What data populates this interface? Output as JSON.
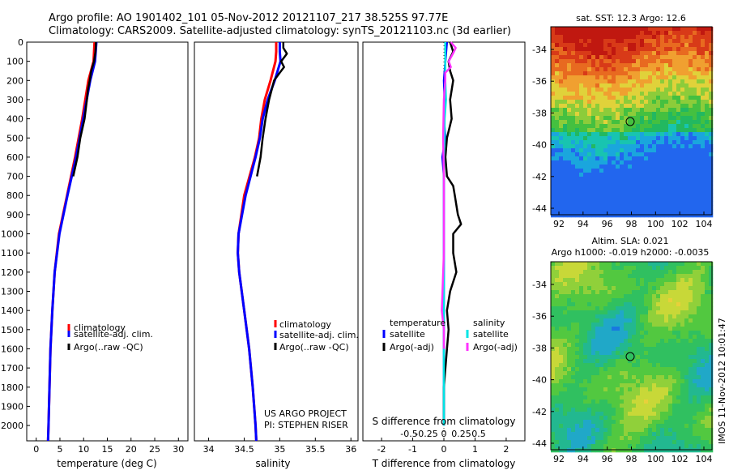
{
  "header": {
    "line1": "Argo profile: AO 1901402_101 05-Nov-2012 20121107_217 38.525S 97.77E",
    "line2": "Climatology: CARS2009. Satellite-adjusted climatology: synTS_20121103.nc (3d earlier)"
  },
  "colors": {
    "clim": "#ff0000",
    "sat": "#0000ff",
    "argo": "#000000",
    "sal_sat": "#00e5e5",
    "sal_argo": "#ff33ff"
  },
  "chart_data": [
    {
      "id": "temp",
      "type": "line",
      "xlabel": "temperature (deg C)",
      "ylabel": "",
      "xlim": [
        -2,
        32
      ],
      "ylim": [
        0,
        2080
      ],
      "xticks": [
        0,
        5,
        10,
        15,
        20,
        25,
        30
      ],
      "xticklabels": [
        "0",
        "5",
        "10",
        "15",
        "20",
        "25",
        "30"
      ],
      "yticks": [
        0,
        100,
        200,
        300,
        400,
        500,
        600,
        700,
        800,
        900,
        1000,
        1100,
        1200,
        1300,
        1400,
        1500,
        1600,
        1700,
        1800,
        1900,
        2000
      ],
      "yticklabels": [
        "0",
        "100",
        "200",
        "300",
        "400",
        "500",
        "600",
        "700",
        "800",
        "900",
        "1000",
        "1100",
        "1200",
        "1300",
        "1400",
        "1500",
        "1600",
        "1700",
        "1800",
        "1900",
        "2000"
      ],
      "legend": [
        "climatology",
        "satellite-adj. clim.",
        "Argo(..raw -QC)"
      ],
      "series": [
        {
          "name": "climatology",
          "depth": [
            0,
            100,
            200,
            400,
            600,
            800,
            1000,
            1200,
            1400,
            1600,
            1800,
            2000,
            2080
          ],
          "values": [
            12.3,
            12.1,
            11.0,
            9.7,
            8.2,
            6.5,
            4.8,
            3.9,
            3.4,
            3.0,
            2.8,
            2.6,
            2.5
          ]
        },
        {
          "name": "satellite-adj. clim.",
          "depth": [
            0,
            100,
            200,
            400,
            600,
            800,
            1000,
            1200,
            1400,
            1600,
            1800,
            2000,
            2080
          ],
          "values": [
            12.7,
            12.4,
            11.4,
            9.9,
            8.4,
            6.6,
            4.9,
            3.9,
            3.4,
            3.0,
            2.8,
            2.6,
            2.5
          ]
        },
        {
          "name": "Argo(..raw -QC)",
          "depth": [
            0,
            50,
            100,
            150,
            200,
            250,
            300,
            400,
            500,
            600,
            700
          ],
          "values": [
            12.6,
            12.5,
            12.2,
            11.6,
            11.3,
            10.9,
            10.7,
            10.2,
            9.3,
            8.7,
            7.8
          ]
        }
      ]
    },
    {
      "id": "sal",
      "type": "line",
      "xlabel": "salinity",
      "ylabel": "",
      "xlim": [
        33.8,
        36.1
      ],
      "ylim": [
        0,
        2080
      ],
      "xticks": [
        34,
        34.5,
        35,
        35.5,
        36
      ],
      "xticklabels": [
        "34",
        "34.5",
        "35",
        "35.5",
        "36"
      ],
      "legend": [
        "climatology",
        "satellite-adj. clim.",
        "Argo(..raw -QC)"
      ],
      "annotations": [
        "US ARGO PROJECT",
        "PI: STEPHEN RISER"
      ],
      "series": [
        {
          "name": "climatology",
          "depth": [
            0,
            50,
            100,
            200,
            300,
            400,
            500,
            600,
            800,
            1000,
            1100,
            1200,
            1400,
            1600,
            1800,
            2000,
            2080
          ],
          "values": [
            34.95,
            34.95,
            34.94,
            34.87,
            34.79,
            34.74,
            34.71,
            34.65,
            34.5,
            34.42,
            34.41,
            34.43,
            34.5,
            34.57,
            34.62,
            34.66,
            34.67
          ]
        },
        {
          "name": "satellite-adj. clim.",
          "depth": [
            0,
            50,
            100,
            200,
            300,
            400,
            500,
            600,
            800,
            1000,
            1100,
            1200,
            1400,
            1600,
            1800,
            2000,
            2080
          ],
          "values": [
            35.0,
            35.0,
            35.01,
            34.93,
            34.83,
            34.76,
            34.72,
            34.66,
            34.52,
            34.42,
            34.41,
            34.43,
            34.5,
            34.57,
            34.62,
            34.66,
            34.67
          ]
        },
        {
          "name": "Argo(..raw -QC)",
          "depth": [
            0,
            30,
            60,
            100,
            130,
            160,
            200,
            300,
            400,
            500,
            600,
            700
          ],
          "values": [
            35.05,
            35.05,
            35.1,
            35.02,
            35.06,
            35.0,
            34.92,
            34.85,
            34.8,
            34.76,
            34.73,
            34.68
          ]
        }
      ]
    },
    {
      "id": "diff",
      "type": "line",
      "xlabel": "T difference from climatology",
      "ylabel": "",
      "xlim": [
        -2.6,
        2.6
      ],
      "ylim": [
        0,
        2080
      ],
      "xticks": [
        -2,
        -1,
        0,
        1,
        2
      ],
      "xticklabels": [
        "-2",
        "-1",
        "0",
        "1",
        "2"
      ],
      "top_xlabel": "S difference from climatology",
      "top_xticks": [
        -0.5,
        -0.25,
        0,
        0.25,
        0.5
      ],
      "top_xticklabels": [
        "-0.5",
        "-0.25",
        "0",
        "0.25",
        "0.5"
      ],
      "legend_headers": [
        "temperature",
        "salinity"
      ],
      "legend": [
        "satellite",
        "Argo(-adj)",
        "satellite",
        "Argo(-adj)"
      ],
      "series": [
        {
          "name": "temperature satellite",
          "depth": [
            0,
            100,
            200,
            300,
            400,
            500,
            600,
            700,
            800,
            900,
            1000,
            1200,
            1400,
            1600,
            1800,
            2000
          ],
          "values": [
            0.1,
            0.05,
            0.0,
            0.02,
            0.0,
            0.05,
            -0.05,
            0.0,
            0.0,
            0.0,
            0.0,
            0.0,
            0.0,
            0.0,
            0.0,
            0.0
          ]
        },
        {
          "name": "temperature Argo(-adj)",
          "depth": [
            0,
            50,
            100,
            150,
            200,
            300,
            400,
            500,
            600,
            700,
            750,
            800,
            850,
            900,
            950,
            1000,
            1100,
            1200,
            1300,
            1400,
            1500,
            1600,
            1700,
            1800,
            1900,
            2000
          ],
          "values": [
            0.2,
            0.3,
            0.15,
            0.2,
            0.3,
            0.2,
            0.25,
            0.1,
            0.05,
            0.1,
            0.3,
            0.35,
            0.4,
            0.45,
            0.55,
            0.3,
            0.3,
            0.4,
            0.2,
            0.1,
            0.15,
            0.1,
            0.05,
            0.0,
            0.0,
            0.0
          ]
        },
        {
          "name": "salinity satellite",
          "depth": [
            0,
            100,
            200,
            300,
            400,
            500,
            600,
            700,
            800,
            900,
            1000,
            1200,
            1400,
            1600,
            1800,
            2000
          ],
          "values": [
            0.02,
            0.02,
            0.02,
            0.03,
            0.01,
            0.01,
            0.0,
            0.0,
            0.0,
            0.0,
            0.0,
            0.0,
            0.0,
            0.0,
            0.0,
            0.0
          ]
        },
        {
          "name": "salinity Argo(-adj)",
          "depth": [
            0,
            30,
            60,
            100,
            130,
            160,
            200,
            300,
            500,
            700,
            900,
            1100,
            1300,
            1400,
            1500,
            1600
          ],
          "values": [
            0.1,
            0.17,
            0.13,
            0.07,
            0.1,
            0.02,
            0.02,
            0.0,
            -0.01,
            0.0,
            0.0,
            0.0,
            -0.02,
            -0.03,
            0.0,
            0.0
          ]
        }
      ]
    }
  ],
  "maps": [
    {
      "title": "sat. SST: 12.3 Argo: 12.6",
      "xticklabels": [
        "92",
        "94",
        "96",
        "98",
        "100",
        "102",
        "104"
      ],
      "yticklabels": [
        "-34",
        "-36",
        "-38",
        "-40",
        "-42",
        "-44"
      ],
      "marker_lon": 97.8,
      "marker_lat": -38.5
    },
    {
      "title1": "Altim. SLA: 0.021",
      "title2": "Argo h1000: -0.019 h2000: -0.0035",
      "xticklabels": [
        "92",
        "94",
        "96",
        "98",
        "100",
        "102",
        "104"
      ],
      "yticklabels": [
        "-34",
        "-36",
        "-38",
        "-40",
        "-42",
        "-44"
      ],
      "marker_lon": 97.8,
      "marker_lat": -38.5
    }
  ],
  "side_label": "IMOS 11-Nov-2012 10:01:47"
}
